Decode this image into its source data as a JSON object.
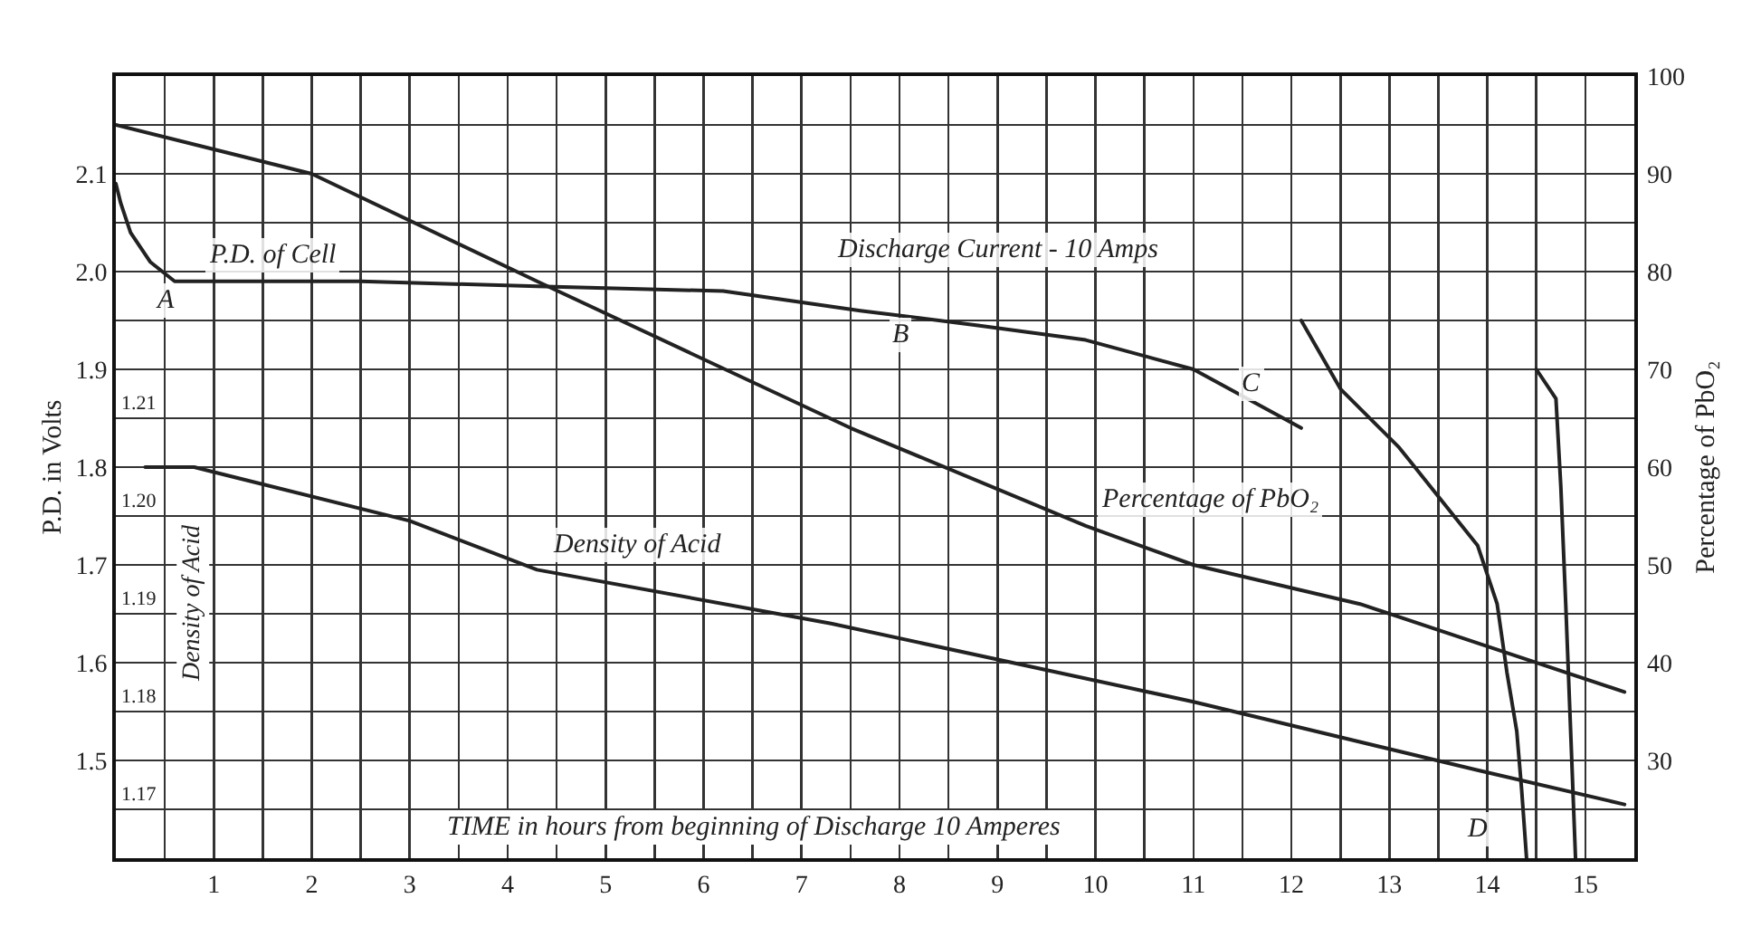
{
  "chart_data": {
    "type": "line",
    "xlabel": "TIME in hours from beginning of Discharge 10 Amperes",
    "ylabel": "P.D. in Volts",
    "y2label": "Percentage of PbO₂",
    "y3label": "Density of Acid",
    "xlim": [
      0,
      15.5
    ],
    "xticks": [
      {
        "value": 0.5,
        "label": null
      },
      1,
      {
        "value": 1.5,
        "label": null
      },
      2,
      {
        "value": 2.5,
        "label": null
      },
      3,
      {
        "value": 3.5,
        "label": null
      },
      4,
      {
        "value": 4.5,
        "label": null
      },
      5,
      {
        "value": 5.5,
        "label": null
      },
      6,
      {
        "value": 6.5,
        "label": null
      },
      7,
      {
        "value": 7.5,
        "label": null
      },
      8,
      {
        "value": 8.5,
        "label": null
      },
      9,
      {
        "value": 9.5,
        "label": null
      },
      10,
      {
        "value": 10.5,
        "label": null
      },
      11,
      {
        "value": 11.5,
        "label": null
      },
      12,
      {
        "value": 12.5,
        "label": null
      },
      13,
      {
        "value": 13.5,
        "label": null
      },
      14,
      {
        "value": 14.5,
        "label": null
      },
      15
    ],
    "ylim": [
      1.4,
      2.2
    ],
    "yticks": [
      {
        "value": 1.45,
        "label": null
      },
      1.5,
      {
        "value": 1.55,
        "label": null
      },
      1.6,
      {
        "value": 1.65,
        "label": null
      },
      1.7,
      {
        "value": 1.75,
        "label": null
      },
      1.8,
      {
        "value": 1.85,
        "label": null
      },
      1.9,
      {
        "value": 1.95,
        "label": null
      },
      {
        "value": 2.0,
        "label": "2.0"
      },
      {
        "value": 2.05,
        "label": null
      },
      2.1,
      {
        "value": 2.15,
        "label": null
      }
    ],
    "y2lim": [
      20,
      100
    ],
    "y2ticks": [
      30,
      40,
      50,
      60,
      70,
      80,
      90,
      100
    ],
    "y3lim": [
      1.165,
      1.245
    ],
    "y3ticks": [
      1.17,
      1.18,
      1.19,
      {
        "value": 1.2,
        "label": "1.20"
      },
      1.21
    ],
    "grid": true,
    "legend": false,
    "series": [
      {
        "name": "P.D. of Cell",
        "color": "#222222",
        "x": [
          0,
          0.05,
          0.15,
          0.35,
          0.6,
          0.8,
          2.5,
          4.3,
          6.2,
          7.6,
          8.8,
          9.9,
          11.0,
          12.1
        ],
        "values": [
          2.09,
          2.07,
          2.04,
          2.01,
          1.99,
          1.99,
          1.99,
          1.985,
          1.98,
          1.96,
          1.945,
          1.93,
          1.9,
          1.84
        ]
      },
      {
        "name": "Percentage of PbO₂",
        "color": "#222222",
        "axis": "y2",
        "x": [
          0,
          2.0,
          4.3,
          7.5,
          9.9,
          11.0,
          12.7,
          13.9,
          15.4
        ],
        "values": [
          95,
          90,
          79,
          64,
          54,
          50,
          46,
          42,
          37
        ]
      },
      {
        "name": "Density of Acid",
        "color": "#222222",
        "axis": "y3",
        "x": [
          0.3,
          0.8,
          3.0,
          4.3,
          7.3,
          11.0,
          13.9,
          15.4
        ],
        "values": [
          1.205,
          1.205,
          1.1995,
          1.1945,
          1.189,
          1.181,
          1.174,
          1.1705
        ]
      },
      {
        "color": "#222222",
        "x": [
          12.1,
          12.5,
          13.1,
          13.5,
          13.9,
          14.1,
          14.2,
          14.3,
          14.35,
          14.4
        ],
        "values": [
          1.95,
          1.88,
          1.82,
          1.77,
          1.72,
          1.66,
          1.59,
          1.53,
          1.47,
          1.4
        ]
      },
      {
        "color": "#222222",
        "x": [
          14.5,
          14.7,
          14.75,
          14.8,
          14.85,
          14.9
        ],
        "values": [
          1.9,
          1.87,
          1.78,
          1.66,
          1.53,
          1.4
        ]
      }
    ],
    "annotations": [
      "Discharge Current - 10 Amps",
      {
        "text": "A",
        "x": 0.5,
        "y": 1.97
      },
      {
        "text": "B",
        "x": 8.0,
        "y": 1.935
      },
      {
        "text": "C",
        "x": 11.6,
        "y": 1.885
      },
      {
        "text": "D",
        "x": 13.9,
        "y": 1.43
      }
    ]
  }
}
